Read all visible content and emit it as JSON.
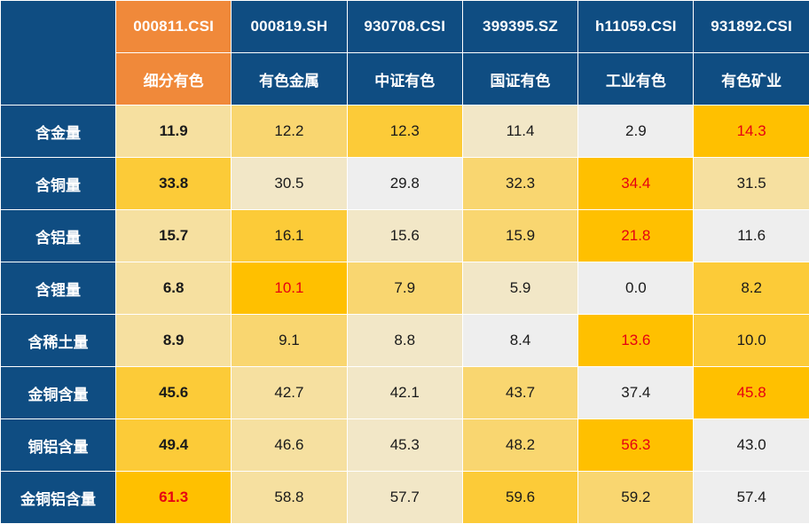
{
  "chart_data": {
    "type": "table",
    "columns": [
      {
        "code": "000811.CSI",
        "name": "细分有色"
      },
      {
        "code": "000819.SH",
        "name": "有色金属"
      },
      {
        "code": "930708.CSI",
        "name": "中证有色"
      },
      {
        "code": "399395.SZ",
        "name": "国证有色"
      },
      {
        "code": "h11059.CSI",
        "name": "工业有色"
      },
      {
        "code": "931892.CSI",
        "name": "有色矿业"
      }
    ],
    "rows": [
      {
        "label": "含金量",
        "values": [
          "11.9",
          "12.2",
          "12.3",
          "11.4",
          "2.9",
          "14.3"
        ],
        "max_index": 5
      },
      {
        "label": "含铜量",
        "values": [
          "33.8",
          "30.5",
          "29.8",
          "32.3",
          "34.4",
          "31.5"
        ],
        "max_index": 4
      },
      {
        "label": "含铝量",
        "values": [
          "15.7",
          "16.1",
          "15.6",
          "15.9",
          "21.8",
          "11.6"
        ],
        "max_index": 4
      },
      {
        "label": "含锂量",
        "values": [
          "6.8",
          "10.1",
          "7.9",
          "5.9",
          "0.0",
          "8.2"
        ],
        "max_index": 1
      },
      {
        "label": "含稀土量",
        "values": [
          "8.9",
          "9.1",
          "8.8",
          "8.4",
          "13.6",
          "10.0"
        ],
        "max_index": 4
      },
      {
        "label": "金铜含量",
        "values": [
          "45.6",
          "42.7",
          "42.1",
          "43.7",
          "37.4",
          "45.8"
        ],
        "max_index": 5
      },
      {
        "label": "铜铝含量",
        "values": [
          "49.4",
          "46.6",
          "45.3",
          "48.2",
          "56.3",
          "43.0"
        ],
        "max_index": 4
      },
      {
        "label": "金铜铝含量",
        "values": [
          "61.3",
          "58.8",
          "57.7",
          "59.6",
          "59.2",
          "57.4"
        ],
        "max_index": 0
      }
    ],
    "colors": {
      "header_blue": "#0f4d82",
      "header_highlight": "#f0893a",
      "max_value_text": "#e60012",
      "heat_low": "#eeeeee",
      "heat_high": "#ffc000"
    }
  }
}
